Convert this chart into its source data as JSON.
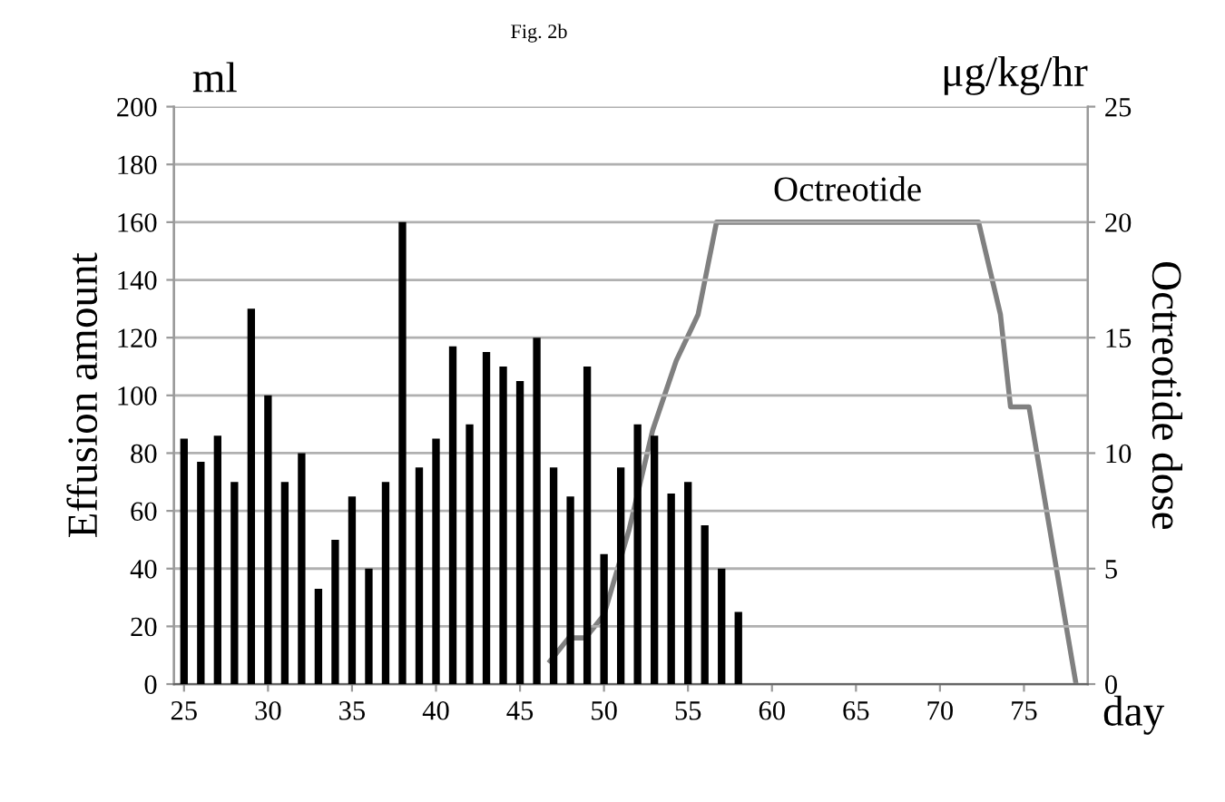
{
  "chart_data": {
    "type": "bar",
    "title": "Fig. 2b",
    "xlabel": "day",
    "ylabel": "Effusion amount",
    "y2label": "Octreotide dose",
    "annotations": [
      "ml",
      "μg/kg/hr"
    ],
    "x": [
      25,
      26,
      27,
      28,
      29,
      30,
      31,
      32,
      33,
      34,
      35,
      36,
      37,
      38,
      39,
      40,
      41,
      42,
      43,
      44,
      45,
      46,
      47,
      48,
      49,
      50,
      51,
      52,
      53,
      54,
      55,
      56,
      57,
      58
    ],
    "series": [
      {
        "color": "#000000",
        "values": [
          85,
          77,
          86,
          70,
          130,
          100,
          70,
          80,
          33,
          50,
          65,
          40,
          70,
          160,
          75,
          85,
          117,
          90,
          115,
          110,
          105,
          120,
          75,
          65,
          110,
          45,
          75,
          90,
          86,
          66,
          70,
          55,
          40,
          25
        ]
      },
      {
        "name": "Octreotide",
        "type": "line",
        "axis": "y2",
        "color": "#808080",
        "x": [
          46.8,
          47.9,
          48.9,
          50,
          51.5,
          52.9,
          54.3,
          55.6,
          56.7,
          72.3,
          73.6,
          74.2,
          75.3,
          78.1
        ],
        "values": [
          1,
          2,
          2,
          3,
          6.7,
          11,
          14,
          16,
          20,
          20,
          16,
          12,
          12,
          0
        ]
      }
    ],
    "xlim": [
      24.4,
      78.8
    ],
    "xticks": [
      25,
      30,
      35,
      40,
      45,
      50,
      55,
      60,
      65,
      70,
      75
    ],
    "ylim": [
      0,
      200
    ],
    "yticks": [
      0,
      20,
      40,
      60,
      80,
      100,
      120,
      140,
      160,
      180,
      200
    ],
    "y2lim": [
      0,
      25
    ],
    "y2ticks": [
      0,
      5,
      10,
      15,
      20,
      25
    ],
    "grid": "y",
    "legend": false
  }
}
